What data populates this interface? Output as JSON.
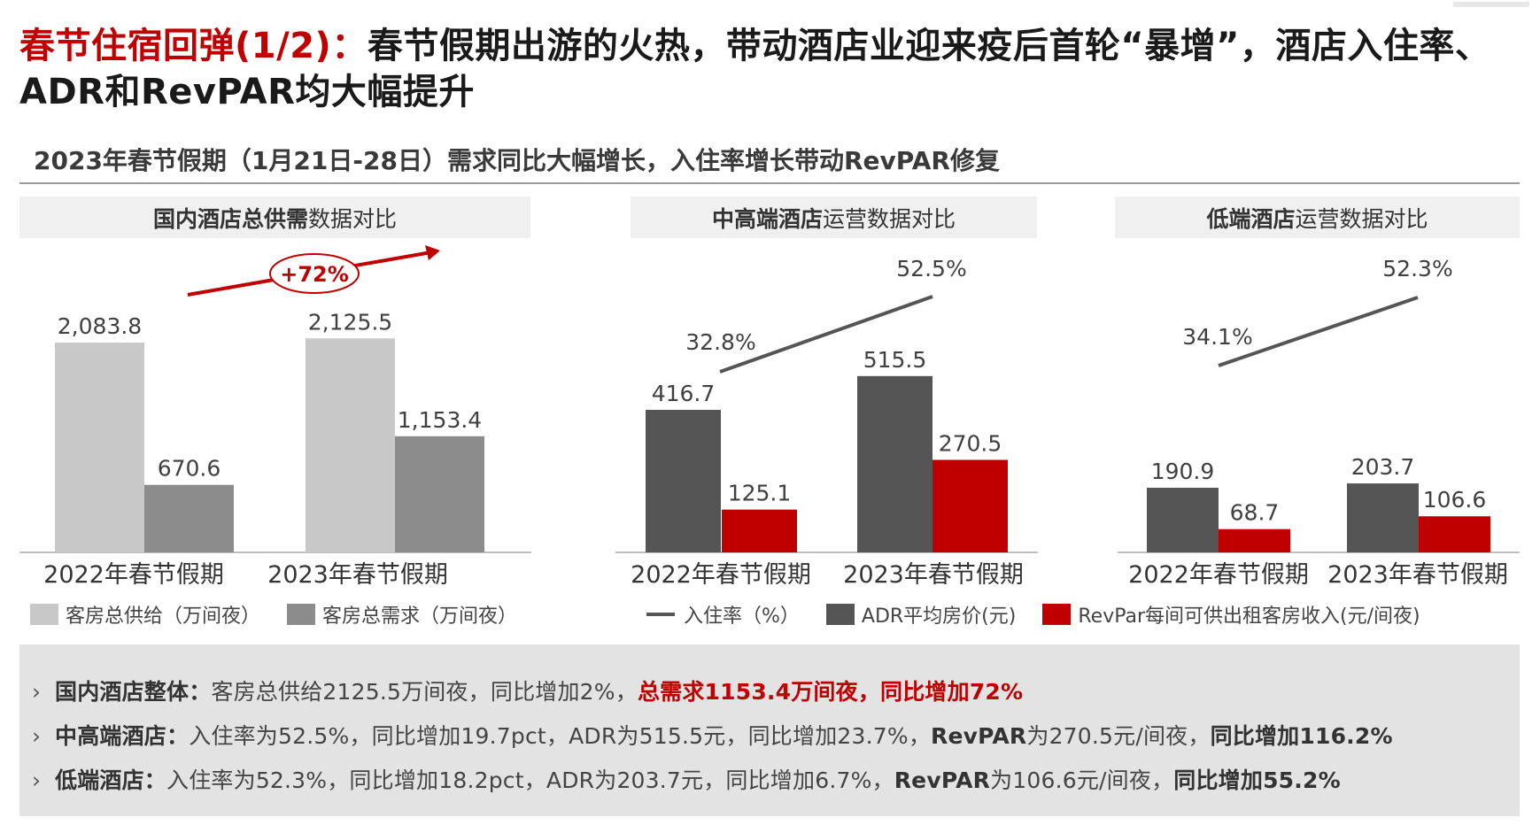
{
  "header": {
    "title_prefix": "春节住宿回弹(1/2)：",
    "title_main": "春节假期出游的火热，带动酒店业迎来疫后首轮“暴增”，酒店入住率、ADR和RevPAR均大幅提升",
    "subtitle": "2023年春节假期（1月21日-28日）需求同比大幅增长，入住率增长带动RevPAR修复"
  },
  "panels": [
    {
      "bold": "国内酒店总供需",
      "rest": "数据对比"
    },
    {
      "bold": "中高端酒店",
      "rest": "运营数据对比"
    },
    {
      "bold": "低端酒店",
      "rest": "运营数据对比"
    }
  ],
  "colors": {
    "supply": "#c8c8c8",
    "demand": "#8c8c8c",
    "adr": "#555555",
    "revpar": "#c00000",
    "occupancy": "#555555",
    "accent": "#c00000"
  },
  "chart_data": [
    {
      "type": "bar",
      "title": "国内酒店总供需数据对比",
      "categories": [
        "2022年春节假期",
        "2023年春节假期"
      ],
      "series": [
        {
          "name": "客房总供给（万间夜）",
          "values": [
            2083.8,
            2125.5
          ],
          "labels": [
            "2,083.8",
            "2,125.5"
          ]
        },
        {
          "name": "客房总需求（万间夜）",
          "values": [
            670.6,
            1153.4
          ],
          "labels": [
            "670.6",
            "1,153.4"
          ]
        }
      ],
      "annotation": "+72%",
      "ylim": [
        0,
        2500
      ]
    },
    {
      "type": "bar",
      "title": "中高端酒店运营数据对比",
      "categories": [
        "2022年春节假期",
        "2023年春节假期"
      ],
      "series": [
        {
          "name": "ADR平均房价(元)",
          "values": [
            416.7,
            515.5
          ],
          "labels": [
            "416.7",
            "515.5"
          ]
        },
        {
          "name": "RevPar每间可供出租客房收入(元/间夜)",
          "values": [
            125.1,
            270.5
          ],
          "labels": [
            "125.1",
            "270.5"
          ]
        }
      ],
      "line_series": {
        "name": "入住率（%）",
        "values": [
          32.8,
          52.5
        ],
        "labels": [
          "32.8%",
          "52.5%"
        ]
      },
      "ylim": [
        0,
        700
      ]
    },
    {
      "type": "bar",
      "title": "低端酒店运营数据对比",
      "categories": [
        "2022年春节假期",
        "2023年春节假期"
      ],
      "series": [
        {
          "name": "ADR平均房价(元)",
          "values": [
            190.9,
            203.7
          ],
          "labels": [
            "190.9",
            "203.7"
          ]
        },
        {
          "name": "RevPar每间可供出租客房收入(元/间夜)",
          "values": [
            68.7,
            106.6
          ],
          "labels": [
            "68.7",
            "106.6"
          ]
        }
      ],
      "line_series": {
        "name": "入住率（%）",
        "values": [
          34.1,
          52.3
        ],
        "labels": [
          "34.1%",
          "52.3%"
        ]
      },
      "ylim": [
        0,
        700
      ]
    }
  ],
  "legends": {
    "left": [
      "客房总供给（万间夜）",
      "客房总需求（万间夜）"
    ],
    "right": [
      "入住率（%）",
      "ADR平均房价(元)",
      "RevPar每间可供出租客房收入(元/间夜)"
    ]
  },
  "notes": [
    {
      "chev": "›",
      "label": "国内酒店整体：",
      "text": "客房总供给2125.5万间夜，同比增加2%，",
      "highlight": "总需求1153.4万间夜，同比增加72%"
    },
    {
      "chev": "›",
      "label": "中高端酒店：",
      "text": "入住率为52.5%，同比增加19.7pct，ADR为515.5元，同比增加23.7%，",
      "bold1": "RevPAR",
      "text2": "为270.5元/间夜，",
      "bold2": "同比增加116.2%"
    },
    {
      "chev": "›",
      "label": "低端酒店：",
      "text": "入住率为52.3%，同比增加18.2pct，ADR为203.7元，同比增加6.7%，",
      "bold1": "RevPAR",
      "text2": "为106.6元/间夜，",
      "bold2": "同比增加55.2%"
    }
  ]
}
